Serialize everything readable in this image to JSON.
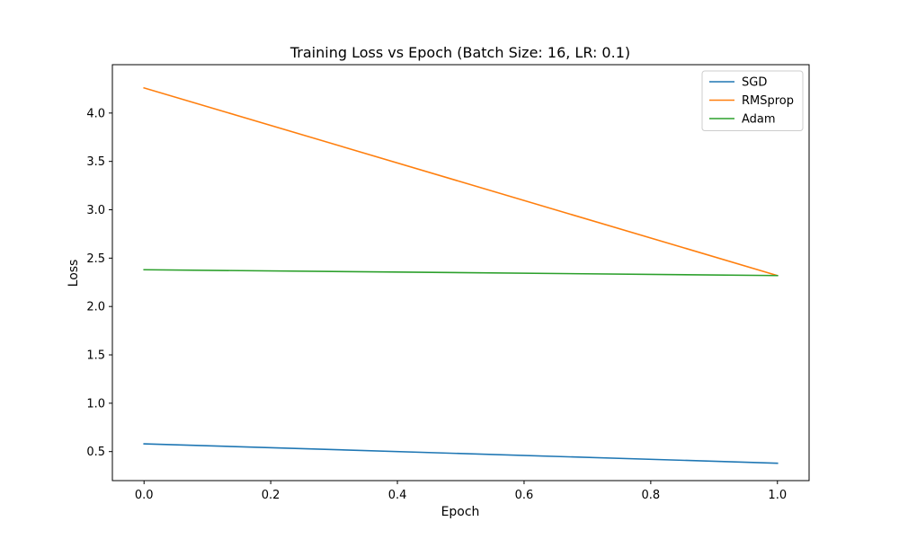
{
  "chart_data": {
    "type": "line",
    "title": "Training Loss vs Epoch (Batch Size: 16, LR: 0.1)",
    "xlabel": "Epoch",
    "ylabel": "Loss",
    "x": [
      0.0,
      1.0
    ],
    "xlim": [
      -0.05,
      1.05
    ],
    "ylim": [
      0.2,
      4.5
    ],
    "xticks": [
      "0.0",
      "0.2",
      "0.4",
      "0.6",
      "0.8",
      "1.0"
    ],
    "yticks": [
      "0.5",
      "1.0",
      "1.5",
      "2.0",
      "2.5",
      "3.0",
      "3.5",
      "4.0"
    ],
    "grid": false,
    "legend_position": "top-right",
    "series": [
      {
        "name": "SGD",
        "values": [
          0.58,
          0.38
        ],
        "color": "#1f77b4"
      },
      {
        "name": "RMSprop",
        "values": [
          4.26,
          2.32
        ],
        "color": "#ff7f0e"
      },
      {
        "name": "Adam",
        "values": [
          2.38,
          2.32
        ],
        "color": "#2ca02c"
      }
    ]
  }
}
